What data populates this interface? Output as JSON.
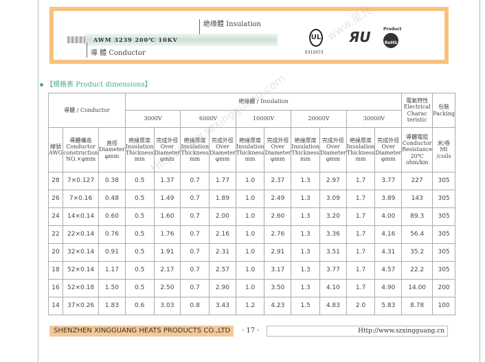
{
  "banner": {
    "cable_print": "AWM 3239  200℃  10KV",
    "insulation_label": "绝缘體 Insulation",
    "conductor_label": "導 體 Conductor",
    "ul_file": "E315073",
    "rohs_top": "Product",
    "rohs_bottom": "RoHS"
  },
  "section_title": "【規格表 Product dimensions】",
  "table": {
    "conductor_header": "導體 / Conductor",
    "insulation_header": "絶緣體 / Insulation",
    "electrical_header": "電氣特性 Electrical Charac teristic",
    "packing_header": "包裝 Packing",
    "voltages": [
      "3000V",
      "6000V",
      "10000V",
      "20000V",
      "30000V"
    ],
    "awg_header": "線號 AWG",
    "construction_header": "導體構造 Conductor construction NO.×φmm",
    "diameter_header": "直徑 Diameter φmm",
    "thickness_header": "絶緣厚度 Insulation Thickness mm",
    "over_diameter_header": "完成外徑 Over Diameter φmm",
    "resistance_header": "導體電阻 Conductor Resistance 20℃ ohm/km",
    "coils_header": "米/卷 Mt /coils",
    "rows": [
      [
        "28",
        "7×0.127",
        "0.38",
        "0.5",
        "1.37",
        "0.7",
        "1.77",
        "1.0",
        "2.37",
        "1.3",
        "2.97",
        "1.7",
        "3.77",
        "227",
        "305"
      ],
      [
        "26",
        "7×0.16",
        "0.48",
        "0.5",
        "1.49",
        "0.7",
        "1.89",
        "1.0",
        "2.49",
        "1.3",
        "3.09",
        "1.7",
        "3.89",
        "143",
        "305"
      ],
      [
        "24",
        "14×0.14",
        "0.60",
        "0.5",
        "1.60",
        "0.7",
        "2.00",
        "1.0",
        "2.60",
        "1.3",
        "3.20",
        "1.7",
        "4.00",
        "89.3",
        "305"
      ],
      [
        "22",
        "22×0.14",
        "0.76",
        "0.5",
        "1.76",
        "0.7",
        "2.16",
        "1.0",
        "2.76",
        "1.3",
        "3.36",
        "1.7",
        "4.16",
        "56.4",
        "305"
      ],
      [
        "20",
        "32×0.14",
        "0.91",
        "0.5",
        "1.91",
        "0.7",
        "2.31",
        "1.0",
        "2.91",
        "1.3",
        "3.51",
        "1.7",
        "4.31",
        "35.2",
        "305"
      ],
      [
        "18",
        "52×0.14",
        "1.17",
        "0.5",
        "2.17",
        "0.7",
        "2.57",
        "1.0",
        "3.17",
        "1.3",
        "3.77",
        "1.7",
        "4.57",
        "22.2",
        "305"
      ],
      [
        "16",
        "52×0.18",
        "1.50",
        "0.5",
        "2.50",
        "0.7",
        "2.90",
        "1.0",
        "3.50",
        "1.3",
        "4.10",
        "1.7",
        "4.90",
        "14.00",
        "200"
      ],
      [
        "14",
        "37×0.26",
        "1.83",
        "0.6",
        "3.03",
        "0.8",
        "3.43",
        "1.2",
        "4.23",
        "1.5",
        "4.83",
        "2.0",
        "5.83",
        "8.78",
        "100"
      ]
    ]
  },
  "footer": {
    "company": "SHENZHEN XINGGUANG HEATS PRODUCTS CO.,LTD",
    "page": "· 17 ·",
    "url": "Http://www.szxingguang.cn"
  },
  "watermarks": [
    "Http://www.szxingguang.com",
    "www.星光"
  ],
  "colors": {
    "banner_border": "#f6c27c",
    "section": "#4aa88a",
    "footer_bar": "#f4c896"
  }
}
